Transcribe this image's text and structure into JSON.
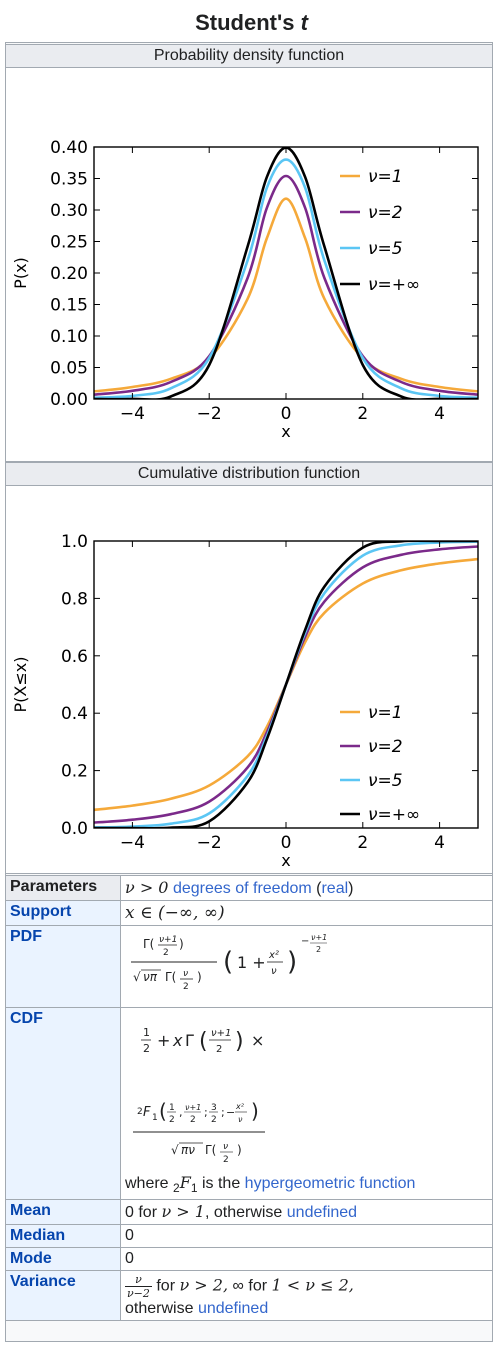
{
  "title": {
    "main": "Student's ",
    "var": "t"
  },
  "pdf_panel": {
    "caption": "Probability density function",
    "chart_data": {
      "type": "line",
      "title": "Probability density function",
      "xlabel": "x",
      "ylabel": "P(x)",
      "xlim": [
        -5,
        5
      ],
      "ylim": [
        0,
        0.4
      ],
      "xticks": [
        "−4",
        "−2",
        "0",
        "2",
        "4"
      ],
      "yticks": [
        "0.00",
        "0.05",
        "0.10",
        "0.15",
        "0.20",
        "0.25",
        "0.30",
        "0.35",
        "0.40"
      ],
      "x": [
        -5,
        -4,
        -3,
        -2,
        -1,
        -0.5,
        0,
        0.5,
        1,
        2,
        3,
        4,
        5
      ],
      "series": [
        {
          "name": "ν=1",
          "color": "#f5a93a",
          "values": [
            0.012,
            0.019,
            0.032,
            0.064,
            0.159,
            0.255,
            0.318,
            0.255,
            0.159,
            0.064,
            0.032,
            0.019,
            0.012
          ]
        },
        {
          "name": "ν=2",
          "color": "#7b2a8a",
          "values": [
            0.007,
            0.013,
            0.027,
            0.068,
            0.192,
            0.303,
            0.354,
            0.303,
            0.192,
            0.068,
            0.027,
            0.013,
            0.007
          ]
        },
        {
          "name": "ν=5",
          "color": "#5bc6f4",
          "values": [
            0.002,
            0.005,
            0.017,
            0.065,
            0.22,
            0.335,
            0.38,
            0.335,
            0.22,
            0.065,
            0.017,
            0.005,
            0.002
          ]
        },
        {
          "name": "ν=+∞",
          "color": "#000000",
          "values": [
            0.0,
            0.0001,
            0.004,
            0.054,
            0.242,
            0.352,
            0.399,
            0.352,
            0.242,
            0.054,
            0.004,
            0.0001,
            0.0
          ]
        }
      ],
      "legend_position": "top-right",
      "grid": false
    }
  },
  "cdf_panel": {
    "caption": "Cumulative distribution function",
    "chart_data": {
      "type": "line",
      "title": "Cumulative distribution function",
      "xlabel": "x",
      "ylabel": "P(X≤x)",
      "xlim": [
        -5,
        5
      ],
      "ylim": [
        0,
        1.0
      ],
      "xticks": [
        "−4",
        "−2",
        "0",
        "2",
        "4"
      ],
      "yticks": [
        "0.0",
        "0.2",
        "0.4",
        "0.6",
        "0.8",
        "1.0"
      ],
      "x": [
        -5,
        -4,
        -3,
        -2,
        -1,
        -0.5,
        0,
        0.5,
        1,
        2,
        3,
        4,
        5
      ],
      "series": [
        {
          "name": "ν=1",
          "color": "#f5a93a",
          "values": [
            0.063,
            0.078,
            0.102,
            0.148,
            0.25,
            0.352,
            0.5,
            0.648,
            0.75,
            0.852,
            0.898,
            0.922,
            0.937
          ]
        },
        {
          "name": "ν=2",
          "color": "#7b2a8a",
          "values": [
            0.019,
            0.029,
            0.048,
            0.092,
            0.211,
            0.333,
            0.5,
            0.667,
            0.789,
            0.908,
            0.952,
            0.971,
            0.981
          ]
        },
        {
          "name": "ν=5",
          "color": "#5bc6f4",
          "values": [
            0.002,
            0.005,
            0.015,
            0.051,
            0.182,
            0.319,
            0.5,
            0.681,
            0.818,
            0.949,
            0.985,
            0.995,
            0.998
          ]
        },
        {
          "name": "ν=+∞",
          "color": "#000000",
          "values": [
            0.0,
            0.0,
            0.001,
            0.023,
            0.159,
            0.309,
            0.5,
            0.691,
            0.841,
            0.977,
            0.999,
            1.0,
            1.0
          ]
        }
      ],
      "legend_position": "lower-right",
      "grid": false
    }
  },
  "table": {
    "parameters": {
      "label": "Parameters",
      "math": "ν > 0",
      "link1": "degrees of freedom",
      "paren_open": "(",
      "link2": "real",
      "paren_close": ")"
    },
    "support": {
      "label": "Support",
      "math": "x ∈ (−∞, ∞)"
    },
    "pdf": {
      "label": "PDF"
    },
    "cdf": {
      "label": "CDF",
      "where_text": "where",
      "f_label": "F",
      "f_sub": "2",
      "f_post_sub": "1",
      "is_text": "is the",
      "link": "hypergeometric function"
    },
    "mean": {
      "label": "Mean",
      "prefix": "0 for",
      "math": "ν > 1",
      "mid": ", otherwise",
      "link": "undefined"
    },
    "median": {
      "label": "Median",
      "value": "0"
    },
    "mode": {
      "label": "Mode",
      "value": "0"
    },
    "variance": {
      "label": "Variance",
      "frac_num": "ν",
      "frac_den": "ν−2",
      "for1": "for",
      "math1": "ν > 2,",
      "inf": "∞ for",
      "math2": "1 < ν ≤ 2,",
      "otherwise": "otherwise",
      "link": "undefined"
    }
  },
  "colors": {
    "border": "#a2a9b1",
    "link": "#3366cc",
    "label_bg": "#eaf3ff"
  }
}
